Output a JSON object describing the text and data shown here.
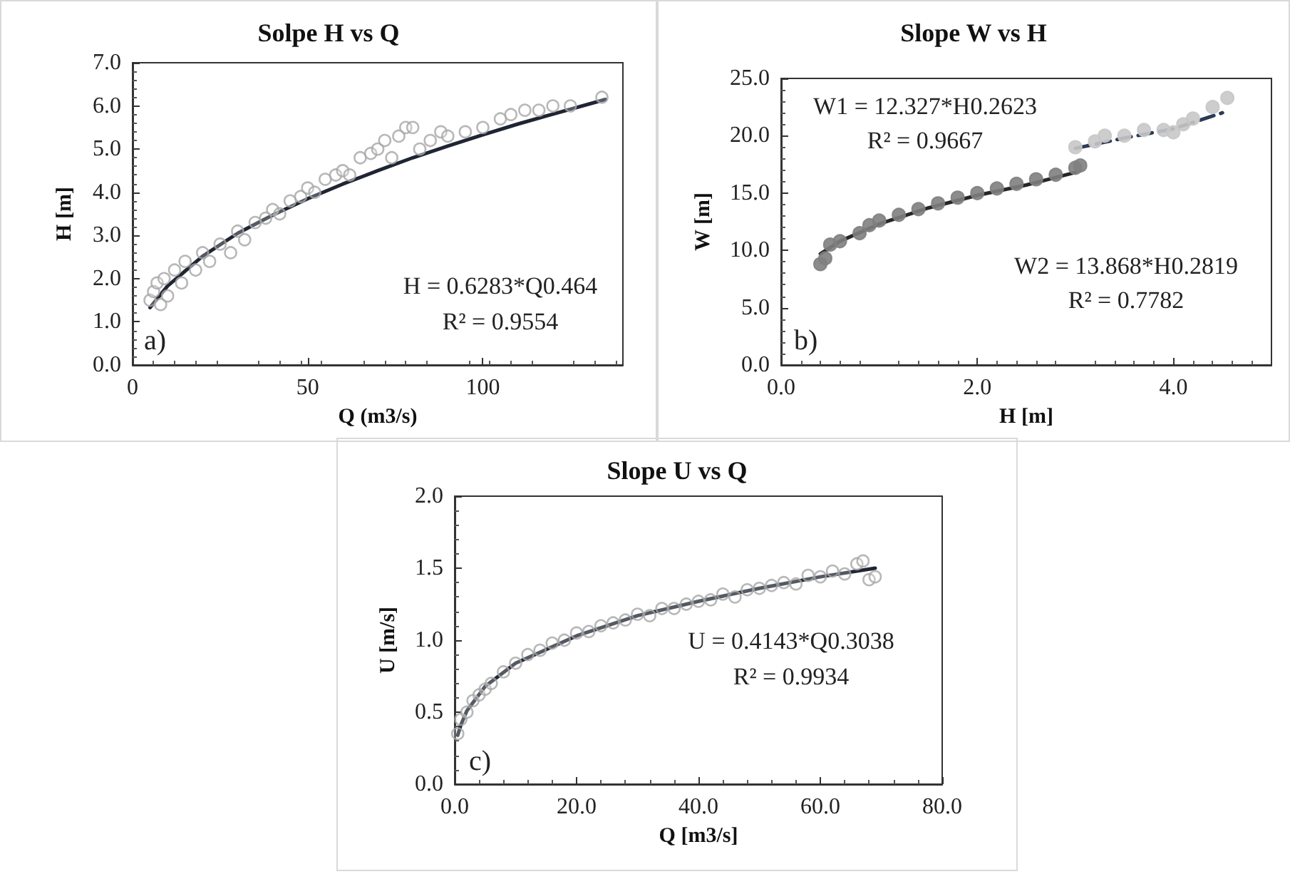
{
  "chart_data": [
    {
      "type": "scatter",
      "title": "Solpe H vs Q",
      "xlabel": "Q (m3/s)",
      "ylabel": "H [m]",
      "xlim": [
        0,
        140
      ],
      "xticks": [
        0,
        50,
        100
      ],
      "ylim": [
        0,
        7
      ],
      "yticks": [
        {
          "value": 0,
          "label": "0.0"
        },
        {
          "value": 1,
          "label": "1.0"
        },
        {
          "value": 2,
          "label": "2.0"
        },
        {
          "value": 3,
          "label": "3.0"
        },
        {
          "value": 4,
          "label": "4.0"
        },
        {
          "value": 5,
          "label": "5.0"
        },
        {
          "value": 6,
          "label": "6.0"
        },
        {
          "value": 7,
          "label": "7.0"
        }
      ],
      "annotations": [
        "H = 0.6283*Q0.464",
        "R² = 0.9554",
        "a)"
      ],
      "series": [
        {
          "marker": "circle",
          "color": "#a6a6a6",
          "x": [
            5,
            6,
            7,
            8,
            9,
            10,
            12,
            14,
            15,
            18,
            20,
            22,
            25,
            28,
            30,
            32,
            35,
            38,
            40,
            42,
            45,
            48,
            50,
            52,
            55,
            58,
            60,
            62,
            65,
            68,
            70,
            72,
            74,
            76,
            78,
            80,
            82,
            85,
            88,
            90,
            95,
            100,
            105,
            108,
            112,
            116,
            120,
            125,
            134
          ],
          "values": [
            1.5,
            1.7,
            1.9,
            1.4,
            2.0,
            1.6,
            2.2,
            1.9,
            2.4,
            2.2,
            2.6,
            2.4,
            2.8,
            2.6,
            3.1,
            2.9,
            3.3,
            3.4,
            3.6,
            3.5,
            3.8,
            3.9,
            4.1,
            4.0,
            4.3,
            4.4,
            4.5,
            4.4,
            4.8,
            4.9,
            5.0,
            5.2,
            4.8,
            5.3,
            5.5,
            5.5,
            5.0,
            5.2,
            5.4,
            5.3,
            5.4,
            5.5,
            5.7,
            5.8,
            5.9,
            5.9,
            6.0,
            6.0,
            6.2
          ]
        },
        {
          "type": "line",
          "marker": "none",
          "line_style": "solid",
          "color": "#1f2533",
          "x": [
            5,
            10,
            20,
            30,
            40,
            50,
            60,
            70,
            80,
            90,
            100,
            110,
            120,
            135
          ],
          "values": [
            1.33,
            1.83,
            2.52,
            3.05,
            3.47,
            3.85,
            4.19,
            4.5,
            4.8,
            5.07,
            5.33,
            5.58,
            5.81,
            6.15
          ]
        }
      ]
    },
    {
      "type": "scatter",
      "title": "Slope W vs H",
      "xlabel": "H [m]",
      "ylabel": "W [m]",
      "xlim": [
        0,
        5
      ],
      "xticks": [
        {
          "value": 0,
          "label": "0.0"
        },
        {
          "value": 2,
          "label": "2.0"
        },
        {
          "value": 4,
          "label": "4.0"
        }
      ],
      "ylim": [
        0,
        25
      ],
      "yticks": [
        {
          "value": 0,
          "label": "0.0"
        },
        {
          "value": 5,
          "label": "5.0"
        },
        {
          "value": 10,
          "label": "10.0"
        },
        {
          "value": 15,
          "label": "15.0"
        },
        {
          "value": 20,
          "label": "20.0"
        },
        {
          "value": 25,
          "label": "25.0"
        }
      ],
      "annotations": [
        "W1 = 12.327*H0.2623",
        "R² = 0.9667",
        "W2 = 13.868*H0.2819",
        "R² = 0.7782",
        "b)"
      ],
      "series": [
        {
          "marker": "circle",
          "color": "#7f7f7f",
          "x": [
            0.4,
            0.45,
            0.5,
            0.6,
            0.8,
            0.9,
            1.0,
            1.2,
            1.4,
            1.6,
            1.8,
            2.0,
            2.2,
            2.4,
            2.6,
            2.8,
            3.0,
            3.05
          ],
          "values": [
            8.8,
            9.3,
            10.5,
            10.8,
            11.5,
            12.2,
            12.6,
            13.1,
            13.6,
            14.1,
            14.6,
            15.0,
            15.4,
            15.8,
            16.2,
            16.6,
            17.2,
            17.4
          ]
        },
        {
          "type": "line",
          "marker": "none",
          "line_style": "solid",
          "color": "#262626",
          "x": [
            0.4,
            0.6,
            1.0,
            1.5,
            2.0,
            2.5,
            3.0
          ],
          "values": [
            9.7,
            10.8,
            12.3,
            13.7,
            14.8,
            15.7,
            16.8
          ]
        },
        {
          "marker": "circle",
          "color": "#c8c8c8",
          "x": [
            3.0,
            3.2,
            3.3,
            3.5,
            3.7,
            3.9,
            4.0,
            4.1,
            4.2,
            4.4,
            4.55
          ],
          "values": [
            19.0,
            19.5,
            20.0,
            20.0,
            20.5,
            20.5,
            20.3,
            21.0,
            21.5,
            22.5,
            23.3
          ]
        },
        {
          "type": "line",
          "marker": "none",
          "line_style": "dashed",
          "color": "#2b3a55",
          "x": [
            3.0,
            3.5,
            4.0,
            4.5
          ],
          "values": [
            18.9,
            19.8,
            20.6,
            22.0
          ]
        }
      ]
    },
    {
      "type": "scatter",
      "title": "Slope U vs Q",
      "xlabel": "Q [m3/s]",
      "ylabel": "U [m/s]",
      "xlim": [
        0,
        80
      ],
      "xticks": [
        {
          "value": 0,
          "label": "0.0"
        },
        {
          "value": 20,
          "label": "20.0"
        },
        {
          "value": 40,
          "label": "40.0"
        },
        {
          "value": 60,
          "label": "60.0"
        },
        {
          "value": 80,
          "label": "80.0"
        }
      ],
      "ylim": [
        0,
        2
      ],
      "yticks": [
        {
          "value": 0,
          "label": "0.0"
        },
        {
          "value": 0.5,
          "label": "0.5"
        },
        {
          "value": 1,
          "label": "1.0"
        },
        {
          "value": 1.5,
          "label": "1.5"
        },
        {
          "value": 2,
          "label": "2.0"
        }
      ],
      "annotations": [
        "U = 0.4143*Q0.3038",
        "R² = 0.9934",
        "c)"
      ],
      "series": [
        {
          "marker": "circle",
          "color": "#a6a6a6",
          "x": [
            0.5,
            1,
            2,
            3,
            4,
            5,
            6,
            8,
            10,
            12,
            14,
            16,
            18,
            20,
            22,
            24,
            26,
            28,
            30,
            32,
            34,
            36,
            38,
            40,
            42,
            44,
            46,
            48,
            50,
            52,
            54,
            56,
            58,
            60,
            62,
            64,
            66,
            67,
            68,
            69
          ],
          "values": [
            0.35,
            0.45,
            0.5,
            0.58,
            0.62,
            0.66,
            0.7,
            0.78,
            0.84,
            0.9,
            0.93,
            0.98,
            1.0,
            1.05,
            1.06,
            1.1,
            1.12,
            1.14,
            1.18,
            1.17,
            1.22,
            1.22,
            1.25,
            1.27,
            1.28,
            1.32,
            1.3,
            1.35,
            1.36,
            1.38,
            1.4,
            1.39,
            1.45,
            1.44,
            1.48,
            1.46,
            1.53,
            1.55,
            1.42,
            1.44
          ]
        },
        {
          "type": "line",
          "marker": "none",
          "line_style": "solid",
          "color": "#1f2533",
          "x": [
            0.5,
            1,
            2,
            5,
            10,
            20,
            30,
            40,
            50,
            60,
            69
          ],
          "values": [
            0.34,
            0.41,
            0.51,
            0.68,
            0.84,
            1.03,
            1.17,
            1.27,
            1.36,
            1.44,
            1.5
          ]
        }
      ]
    }
  ]
}
